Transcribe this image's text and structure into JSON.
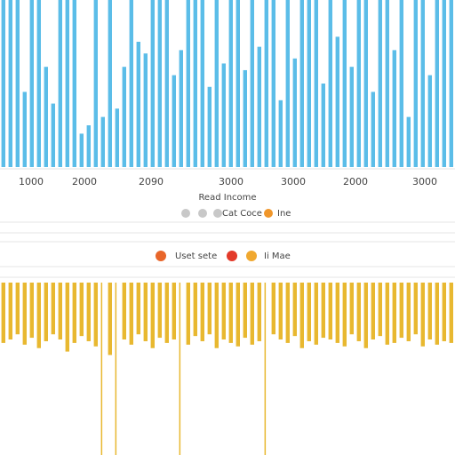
{
  "chart_data": [
    {
      "type": "bar",
      "color": "#5bbde8",
      "ylim": [
        0,
        100
      ],
      "tick_labels": [
        "1000",
        "2000",
        "2090",
        "3000",
        "3000",
        "2000",
        "3000"
      ],
      "legend_title": "Read Income",
      "legend": [
        {
          "label": "Cat Coce",
          "color": "#c8c8c8"
        },
        {
          "label": "Ine",
          "color": "#f0962a"
        }
      ],
      "values": [
        100,
        100,
        100,
        45,
        100,
        100,
        60,
        38,
        100,
        100,
        100,
        20,
        25,
        100,
        30,
        100,
        35,
        60,
        100,
        75,
        68,
        100,
        100,
        100,
        55,
        70,
        100,
        100,
        100,
        48,
        100,
        62,
        100,
        100,
        58,
        100,
        72,
        100,
        100,
        40,
        100,
        65,
        100,
        100,
        100,
        50,
        100,
        78,
        100,
        60,
        100,
        100,
        45,
        100,
        100,
        70,
        100,
        30,
        100,
        100,
        55,
        100,
        100,
        100
      ]
    },
    {
      "type": "hanging-bar",
      "color": "#e8b830",
      "ylim": [
        0,
        100
      ],
      "legend": [
        {
          "label": "Uset sete",
          "color": "#e8662a"
        },
        {
          "label": "Ii Mae",
          "color": "#f0a830"
        }
      ],
      "values": [
        35,
        33,
        30,
        36,
        32,
        38,
        34,
        30,
        33,
        40,
        35,
        31,
        34,
        37,
        100,
        42,
        100,
        33,
        36,
        30,
        34,
        38,
        32,
        35,
        33,
        100,
        36,
        31,
        34,
        30,
        38,
        33,
        35,
        37,
        32,
        36,
        34,
        100,
        30,
        33,
        35,
        31,
        38,
        34,
        36,
        32,
        33,
        35,
        37,
        30,
        34,
        38,
        33,
        31,
        36,
        35,
        32,
        34,
        30,
        37,
        33,
        36,
        34,
        35
      ]
    }
  ]
}
